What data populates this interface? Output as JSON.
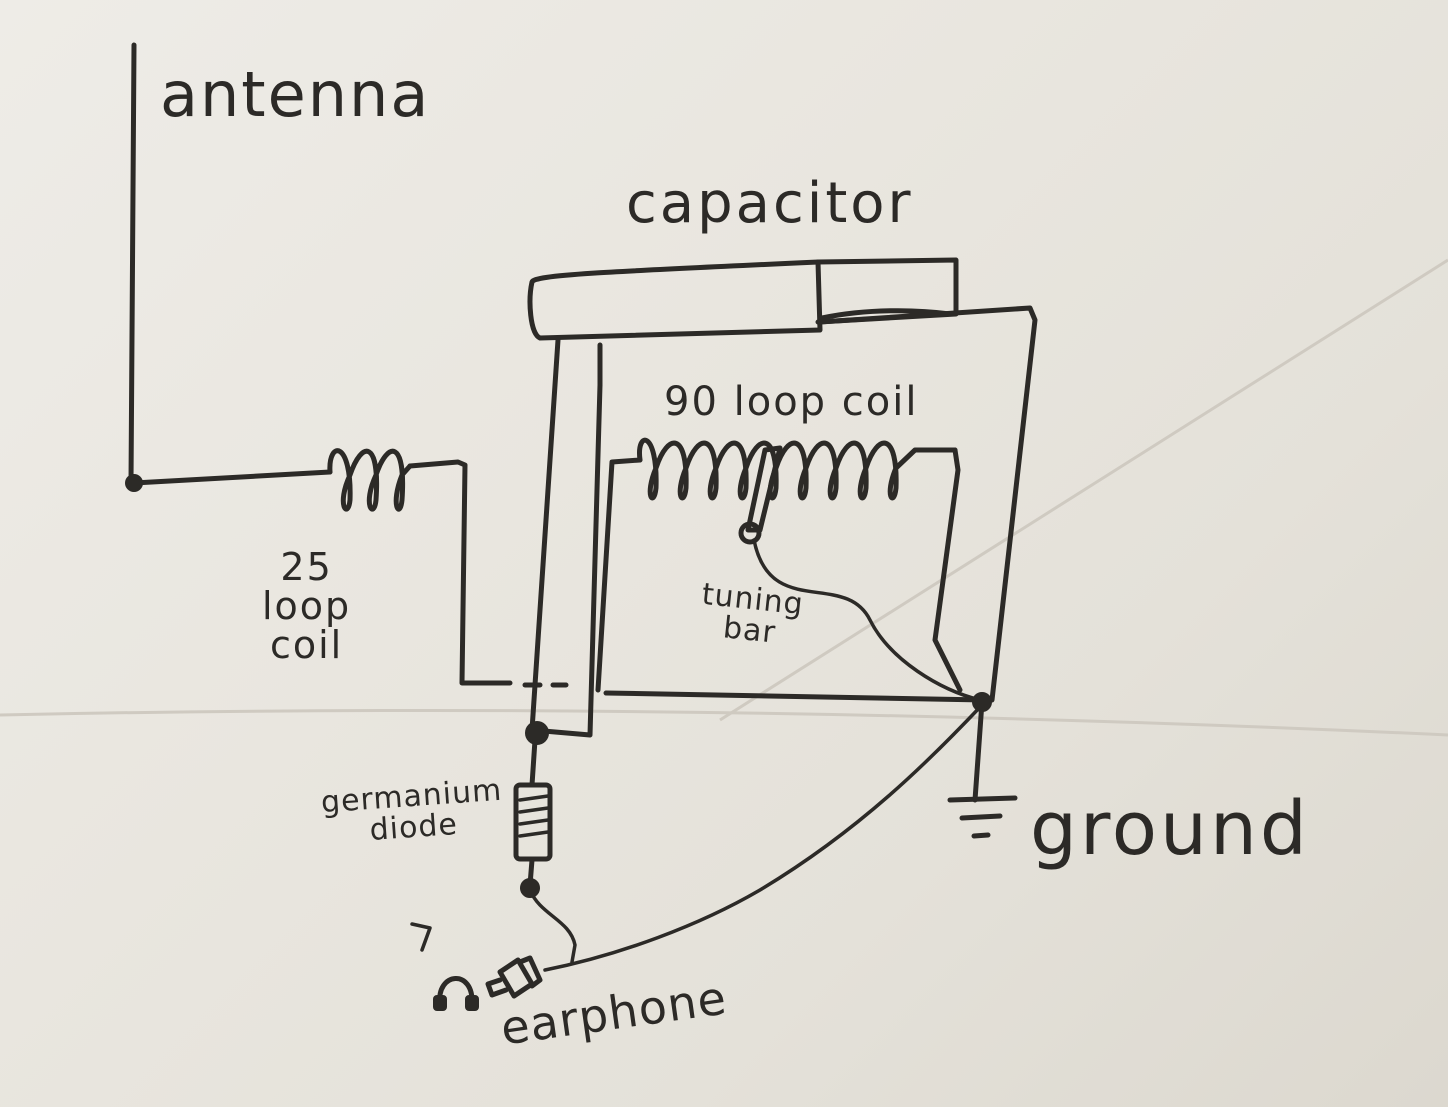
{
  "labels": {
    "antenna": "antenna",
    "capacitor": "capacitor",
    "coil_90": "90 loop coil",
    "coil_25": "25\nloop\ncoil",
    "tuning_bar": "tuning\nbar",
    "germanium_diode": "germanium\ndiode",
    "ground": "ground",
    "earphone": "earphone"
  },
  "colors": {
    "ink": "#2c2a27",
    "paper": "#e9e6df"
  },
  "icons": {
    "earphone": "headphones-icon",
    "ground": "ground-symbol-icon"
  }
}
